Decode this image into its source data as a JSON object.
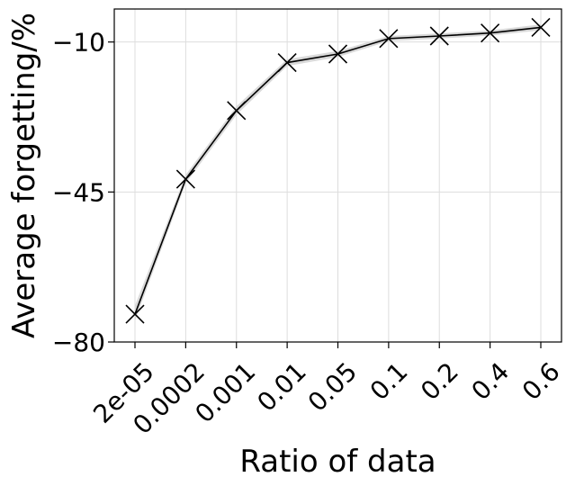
{
  "chart_data": {
    "type": "line",
    "title": "",
    "xlabel": "Ratio of data",
    "ylabel": "Average forgetting/%",
    "categories": [
      "2e-05",
      "0.0002",
      "0.001",
      "0.01",
      "0.05",
      "0.1",
      "0.2",
      "0.4",
      "0.6"
    ],
    "series": [
      {
        "values": [
          -73.5,
          -42.0,
          -26.0,
          -14.8,
          -12.8,
          -9.2,
          -8.6,
          -7.9,
          -6.6
        ],
        "lower": [
          -75.0,
          -43.0,
          -27.0,
          -15.6,
          -13.5,
          -9.8,
          -9.2,
          -8.5,
          -7.3
        ],
        "upper": [
          -71.5,
          -41.0,
          -25.0,
          -14.0,
          -12.1,
          -8.6,
          -8.0,
          -7.3,
          -5.9
        ],
        "color": "#000000",
        "band_color": "#d9d9d9",
        "marker": "x"
      }
    ],
    "yticks": [
      -10,
      -45,
      -80
    ],
    "ytick_labels": [
      "−10",
      "−45",
      "−80"
    ],
    "ylim": [
      -80,
      -2.3
    ],
    "grid": true,
    "legend": "none"
  }
}
